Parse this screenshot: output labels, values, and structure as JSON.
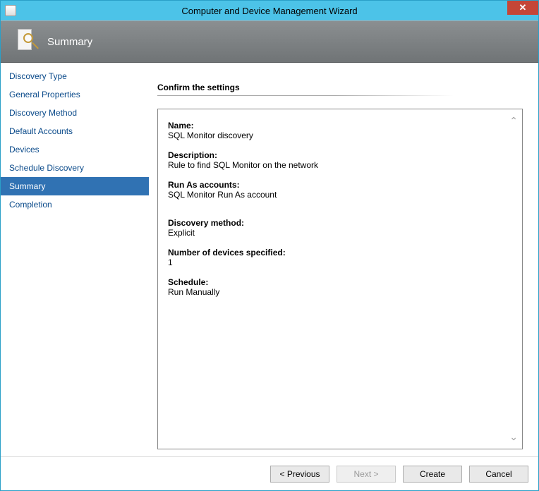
{
  "colors": {
    "titlebar_bg": "#4cc3e8",
    "close_bg": "#c54637",
    "header_grad_top": "#8b8f91",
    "header_grad_bottom": "#707476",
    "sidebar_link": "#0a4a8a",
    "sidebar_selected_bg": "#3072b3",
    "details_border": "#888888",
    "button_bg": "#e9e9e9",
    "button_border": "#adadad"
  },
  "titlebar": {
    "title": "Computer and Device Management Wizard",
    "close_glyph": "✕"
  },
  "header": {
    "title": "Summary"
  },
  "sidebar": {
    "items": [
      {
        "label": "Discovery Type",
        "selected": false
      },
      {
        "label": "General Properties",
        "selected": false
      },
      {
        "label": "Discovery Method",
        "selected": false
      },
      {
        "label": "Default Accounts",
        "selected": false
      },
      {
        "label": "Devices",
        "selected": false
      },
      {
        "label": "Schedule Discovery",
        "selected": false
      },
      {
        "label": "Summary",
        "selected": true
      },
      {
        "label": "Completion",
        "selected": false
      }
    ]
  },
  "content": {
    "section_title": "Confirm the settings",
    "fields": [
      {
        "label": "Name:",
        "value": "SQL Monitor discovery"
      },
      {
        "label": "Description:",
        "value": "Rule to find SQL Monitor on the network"
      },
      {
        "label": "Run As accounts:",
        "value": "SQL Monitor Run As account"
      },
      {
        "label": "Discovery method:",
        "value": "Explicit"
      },
      {
        "label": "Number of devices specified:",
        "value": "1"
      },
      {
        "label": "Schedule:",
        "value": "Run Manually"
      }
    ]
  },
  "footer": {
    "previous": "< Previous",
    "next": "Next >",
    "create": "Create",
    "cancel": "Cancel",
    "next_enabled": false
  }
}
